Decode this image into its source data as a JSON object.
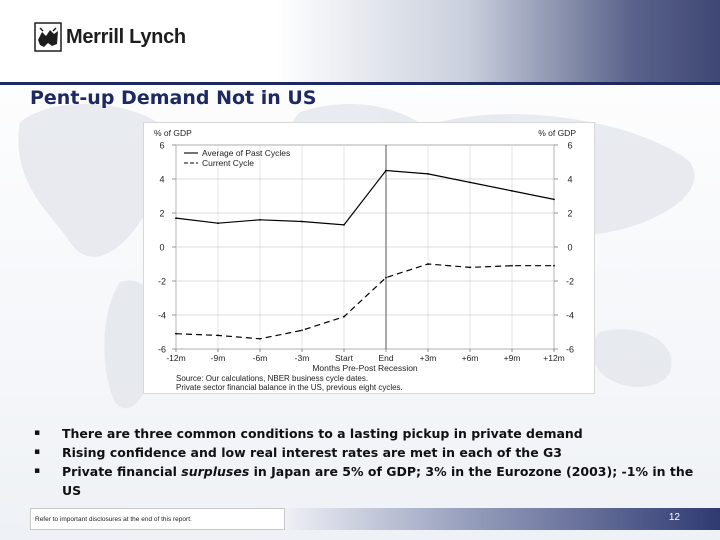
{
  "brand": {
    "name": "Merrill Lynch"
  },
  "slide": {
    "title": "Pent-up Demand Not in US",
    "bullets": [
      {
        "pre": "There are three common conditions to a lasting pickup in private demand",
        "em": "",
        "post": ""
      },
      {
        "pre": "Rising confidence and low real interest rates are met in each of the G3",
        "em": "",
        "post": ""
      },
      {
        "pre": "Private financial ",
        "em": "surpluses",
        "post": " in Japan are 5% of GDP; 3% in the Eurozone (2003); -1% in the US"
      }
    ],
    "footer_note": "Refer to important disclosures at the end of this report.",
    "page_number": "12"
  },
  "colors": {
    "title": "#1d2960",
    "header_dark": "#3f4875"
  },
  "chart_data": {
    "type": "line",
    "ylabel_left": "% of GDP",
    "ylabel_right": "% of GDP",
    "xlabel": "Months Pre-Post Recession",
    "ylim": [
      -6,
      6
    ],
    "yticks": [
      6,
      4,
      2,
      0,
      -2,
      -4,
      -6
    ],
    "grid": true,
    "vertical_line_at": "End",
    "categories": [
      "-12m",
      "-9m",
      "-6m",
      "-3m",
      "Start",
      "End",
      "+3m",
      "+6m",
      "+9m",
      "+12m"
    ],
    "series": [
      {
        "name": "Average of Past Cycles",
        "style": "solid",
        "values": [
          1.7,
          1.4,
          1.6,
          1.5,
          1.3,
          4.5,
          4.3,
          3.8,
          3.3,
          2.8
        ]
      },
      {
        "name": "Current Cycle",
        "style": "dashed",
        "values": [
          -5.1,
          -5.2,
          -5.4,
          -4.9,
          -4.1,
          -1.8,
          -1.0,
          -1.2,
          -1.1,
          -1.1
        ]
      }
    ],
    "legend_position": "top-left",
    "source": [
      "Source: Our calculations, NBER business cycle dates.",
      "Private sector financial balance in the US, previous eight cycles."
    ]
  }
}
